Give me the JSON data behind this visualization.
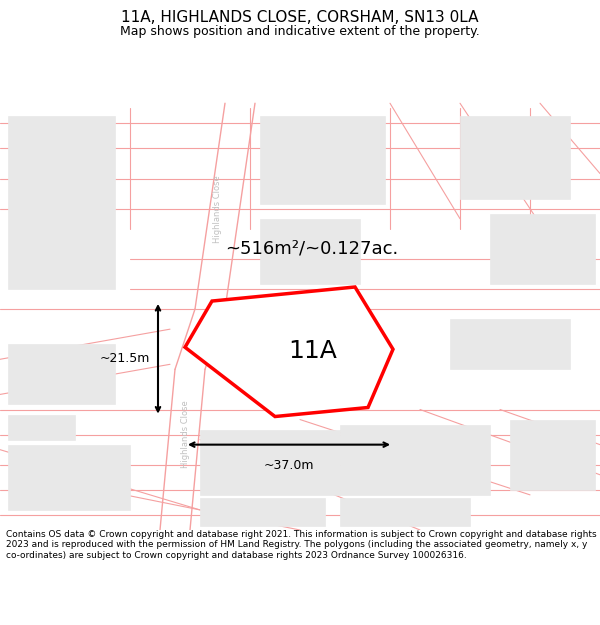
{
  "title": "11A, HIGHLANDS CLOSE, CORSHAM, SN13 0LA",
  "subtitle": "Map shows position and indicative extent of the property.",
  "footer": "Contains OS data © Crown copyright and database right 2021. This information is subject to Crown copyright and database rights 2023 and is reproduced with the permission of HM Land Registry. The polygons (including the associated geometry, namely x, y co-ordinates) are subject to Crown copyright and database rights 2023 Ordnance Survey 100026316.",
  "background_color": "#ffffff",
  "map_bg": "#ffffff",
  "property_label": "11A",
  "area_label": "~516m²/~0.127ac.",
  "width_label": "~37.0m",
  "height_label": "~21.5m",
  "road_text_1": "Highlands Close",
  "road_text_2": "Highlands Close",
  "property_color": "#ff0000",
  "property_fill": "#ffffff",
  "road_color": "#f5a0a0",
  "building_color": "#e8e8e8",
  "building_edge_color": "#e8e8e8",
  "title_fontsize": 11,
  "subtitle_fontsize": 9,
  "footer_fontsize": 6.5,
  "label_fontsize": 13,
  "prop_label_fontsize": 18,
  "dim_fontsize": 9
}
